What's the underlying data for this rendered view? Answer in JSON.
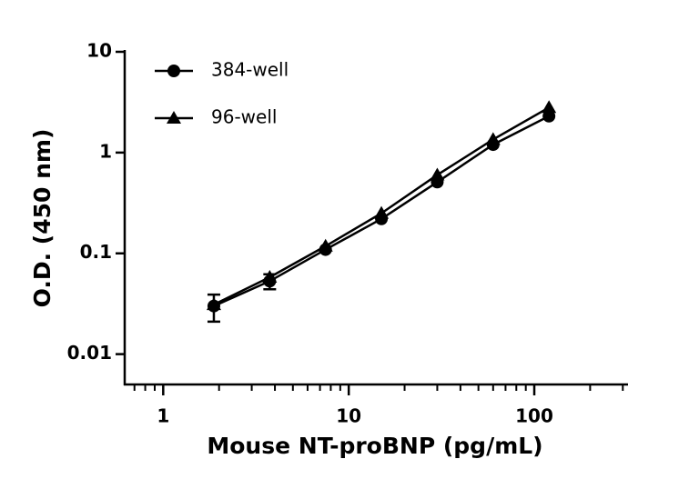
{
  "chart_data": {
    "type": "scatter",
    "xlabel": "Mouse NT-proBNP (pg/mL)",
    "ylabel": "O.D. (450 nm)",
    "x": [
      1.875,
      3.75,
      7.5,
      15,
      30,
      60,
      120
    ],
    "series": [
      {
        "name": "384-well",
        "color": "#000000",
        "marker": "circle",
        "values": [
          0.03,
          0.053,
          0.109,
          0.22,
          0.51,
          1.2,
          2.3
        ],
        "errors": [
          0.009,
          0.009,
          null,
          null,
          null,
          null,
          null
        ]
      },
      {
        "name": "96-well",
        "color": "#000000",
        "marker": "triangle",
        "values": [
          0.031,
          0.058,
          0.118,
          0.25,
          0.6,
          1.35,
          2.8
        ]
      }
    ],
    "xscale": "log",
    "yscale": "log",
    "xlim": [
      0.62,
      320
    ],
    "ylim": [
      0.005,
      10
    ],
    "xticks": [
      1,
      10,
      100
    ],
    "xminorticks": [
      0.7,
      0.8,
      0.9,
      2,
      3,
      4,
      5,
      6,
      7,
      8,
      9,
      20,
      30,
      40,
      50,
      60,
      70,
      80,
      90,
      200,
      300
    ],
    "yticks": [
      0.01,
      0.1,
      1,
      10
    ],
    "legend": "upper left"
  }
}
